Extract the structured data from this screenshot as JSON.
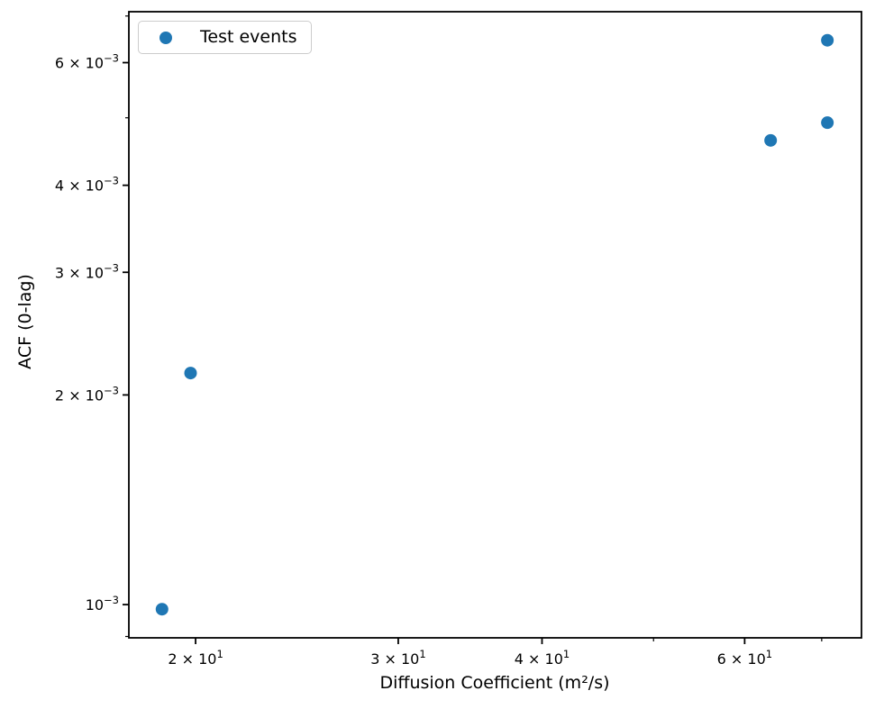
{
  "figure": {
    "background": "#ffffff",
    "spine_color": "#000000",
    "text_color": "#000000"
  },
  "chart_data": {
    "type": "scatter",
    "title": "",
    "xlabel": "Diffusion Coefficient (m²/s)",
    "ylabel": "ACF (0-lag)",
    "x_scale": "log",
    "y_scale": "log",
    "xlim": [
      17.5,
      75.8
    ],
    "ylim": [
      0.000896,
      0.0071
    ],
    "grid": false,
    "legend": {
      "label": "Test events",
      "position": "upper left"
    },
    "series": [
      {
        "name": "Test events",
        "color": "#1f77b4",
        "marker": "circle",
        "points": [
          {
            "x": 18.7,
            "y": 0.000985
          },
          {
            "x": 19.8,
            "y": 0.00215
          },
          {
            "x": 63.2,
            "y": 0.00464
          },
          {
            "x": 70.8,
            "y": 0.00492
          },
          {
            "x": 70.8,
            "y": 0.00646
          }
        ]
      }
    ],
    "x_ticks_major": [
      {
        "value": 20,
        "base": "2 × 10",
        "exp": "1"
      },
      {
        "value": 30,
        "base": "3 × 10",
        "exp": "1"
      },
      {
        "value": 40,
        "base": "4 × 10",
        "exp": "1"
      },
      {
        "value": 60,
        "base": "6 × 10",
        "exp": "1"
      }
    ],
    "x_ticks_minor": [
      50,
      70
    ],
    "y_ticks_major": [
      {
        "value": 0.001,
        "base": "10",
        "exp": "−3"
      },
      {
        "value": 0.002,
        "base": "2 × 10",
        "exp": "−3"
      },
      {
        "value": 0.003,
        "base": "3 × 10",
        "exp": "−3"
      },
      {
        "value": 0.004,
        "base": "4 × 10",
        "exp": "−3"
      },
      {
        "value": 0.006,
        "base": "6 × 10",
        "exp": "−3"
      }
    ],
    "y_ticks_minor": [
      0.0009,
      0.005,
      0.007
    ],
    "marker_radius_px": 7
  }
}
